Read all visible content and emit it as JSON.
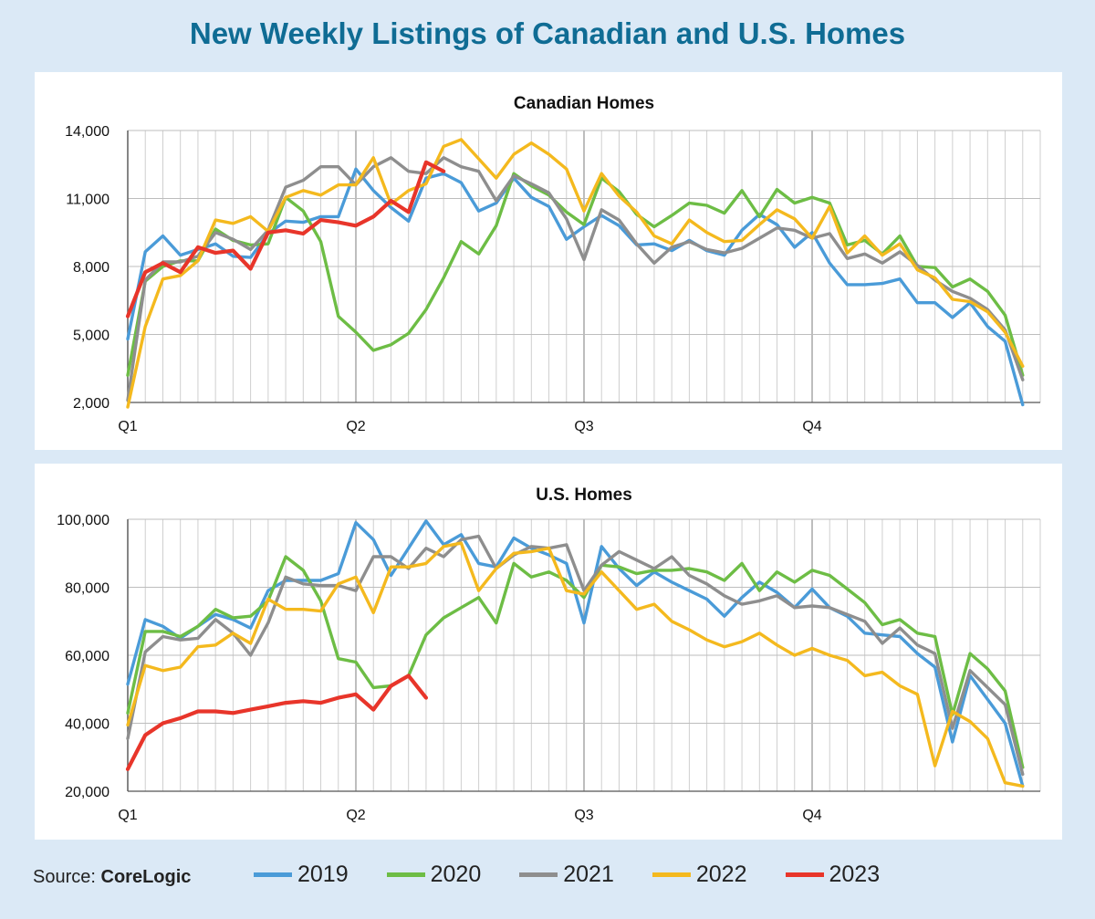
{
  "title": "New Weekly Listings of Canadian and U.S. Homes",
  "source": {
    "label": "Source:",
    "name": "CoreLogic"
  },
  "legend": [
    {
      "name": "2019",
      "color": "#4a9bd8"
    },
    {
      "name": "2020",
      "color": "#6dbd45"
    },
    {
      "name": "2021",
      "color": "#8e8e8e"
    },
    {
      "name": "2022",
      "color": "#f4b91e"
    },
    {
      "name": "2023",
      "color": "#e8352a"
    }
  ],
  "chart_data": [
    {
      "type": "line",
      "title": "Canadian Homes",
      "x_unit": "week",
      "xlim": [
        1,
        53
      ],
      "x_ticks": [
        {
          "x": 1,
          "label": "Q1"
        },
        {
          "x": 14,
          "label": "Q2"
        },
        {
          "x": 27,
          "label": "Q3"
        },
        {
          "x": 40,
          "label": "Q4"
        }
      ],
      "ylim": [
        2000,
        14000
      ],
      "y_ticks": [
        {
          "v": 2000,
          "label": "2,000"
        },
        {
          "v": 5000,
          "label": "5,000"
        },
        {
          "v": 8000,
          "label": "8,000"
        },
        {
          "v": 11000,
          "label": "11,000"
        },
        {
          "v": 14000,
          "label": "14,000"
        }
      ],
      "grid": true,
      "series": [
        {
          "name": "2019",
          "values": [
            4800,
            8650,
            9350,
            8500,
            8750,
            9000,
            8450,
            8400,
            9450,
            10000,
            9950,
            10200,
            10200,
            12300,
            11350,
            10600,
            10000,
            11900,
            12100,
            11700,
            10450,
            10800,
            11900,
            11050,
            10650,
            9200,
            9750,
            10250,
            9800,
            8950,
            9000,
            8700,
            9150,
            8700,
            8500,
            9600,
            10300,
            9850,
            8850,
            9500,
            8150,
            7200,
            7200,
            7250,
            7450,
            6400,
            6400,
            5750,
            6400,
            5350,
            4700,
            1900
          ]
        },
        {
          "name": "2020",
          "values": [
            3200,
            7350,
            8000,
            8250,
            8250,
            9650,
            9150,
            8950,
            9000,
            11050,
            10450,
            9100,
            5800,
            5100,
            4300,
            4550,
            5050,
            6100,
            7500,
            9100,
            8550,
            9800,
            12100,
            11550,
            11150,
            10400,
            9850,
            11900,
            11300,
            10300,
            9750,
            10250,
            10800,
            10700,
            10350,
            11350,
            10200,
            11400,
            10800,
            11050,
            10800,
            8950,
            9150,
            8550,
            9350,
            8000,
            7950,
            7100,
            7450,
            6900,
            5850,
            3200
          ]
        },
        {
          "name": "2021",
          "values": [
            2100,
            7400,
            8200,
            8200,
            8450,
            9500,
            9200,
            8750,
            9600,
            11500,
            11800,
            12400,
            12400,
            11600,
            12400,
            12800,
            12200,
            12100,
            12800,
            12400,
            12200,
            10900,
            12000,
            11650,
            11250,
            10100,
            8300,
            10500,
            10050,
            9000,
            8150,
            8850,
            9100,
            8750,
            8600,
            8800,
            9250,
            9700,
            9600,
            9250,
            9450,
            8350,
            8550,
            8150,
            8650,
            8050,
            7400,
            6900,
            6600,
            6100,
            5200,
            3000
          ]
        },
        {
          "name": "2022",
          "values": [
            1800,
            5350,
            7450,
            7600,
            8250,
            10050,
            9900,
            10200,
            9550,
            11050,
            11350,
            11150,
            11600,
            11600,
            12800,
            10750,
            11350,
            11650,
            13300,
            13600,
            12750,
            11900,
            12950,
            13450,
            12950,
            12300,
            10450,
            12100,
            11100,
            10400,
            9350,
            9000,
            10050,
            9500,
            9100,
            9150,
            9850,
            10500,
            10100,
            9250,
            10650,
            8600,
            9350,
            8500,
            9000,
            7850,
            7500,
            6550,
            6450,
            6000,
            5100,
            3600
          ]
        },
        {
          "name": "2023",
          "values": [
            5800,
            7750,
            8150,
            7750,
            8850,
            8600,
            8700,
            7900,
            9500,
            9600,
            9450,
            10050,
            9950,
            9800,
            10200,
            10900,
            10400,
            12600,
            12200
          ]
        }
      ]
    },
    {
      "type": "line",
      "title": "U.S. Homes",
      "x_unit": "week",
      "xlim": [
        1,
        53
      ],
      "x_ticks": [
        {
          "x": 1,
          "label": "Q1"
        },
        {
          "x": 14,
          "label": "Q2"
        },
        {
          "x": 27,
          "label": "Q3"
        },
        {
          "x": 40,
          "label": "Q4"
        }
      ],
      "ylim": [
        20000,
        100000
      ],
      "y_ticks": [
        {
          "v": 20000,
          "label": "20,000"
        },
        {
          "v": 40000,
          "label": "40,000"
        },
        {
          "v": 60000,
          "label": "60,000"
        },
        {
          "v": 80000,
          "label": "80,000"
        },
        {
          "v": 100000,
          "label": "100,000"
        }
      ],
      "grid": true,
      "series": [
        {
          "name": "2019",
          "values": [
            51500,
            70500,
            68500,
            65000,
            68500,
            72000,
            70500,
            68000,
            79000,
            82000,
            82000,
            82000,
            84000,
            99000,
            94000,
            83500,
            91500,
            99500,
            92500,
            95500,
            87000,
            86000,
            94500,
            91500,
            89500,
            87000,
            69500,
            92000,
            85500,
            80500,
            84500,
            81500,
            79000,
            76500,
            71500,
            77000,
            81500,
            78500,
            74000,
            79500,
            74000,
            71500,
            66500,
            66000,
            65500,
            60500,
            56500,
            34500,
            54000,
            47000,
            40000,
            21500
          ]
        },
        {
          "name": "2020",
          "values": [
            43000,
            67000,
            67000,
            65500,
            68500,
            73500,
            71000,
            71500,
            76000,
            89000,
            85000,
            76000,
            59000,
            58000,
            50500,
            51000,
            54000,
            66000,
            71000,
            74000,
            77000,
            69500,
            87000,
            83000,
            84500,
            82000,
            77000,
            86500,
            86000,
            84000,
            85000,
            85000,
            85500,
            84500,
            82000,
            87000,
            79000,
            84500,
            81500,
            85000,
            83500,
            79500,
            75500,
            69000,
            70500,
            66500,
            65500,
            42500,
            60500,
            56000,
            49500,
            27000
          ]
        },
        {
          "name": "2021",
          "values": [
            35500,
            61000,
            65500,
            64500,
            65000,
            70500,
            66500,
            60000,
            69500,
            83000,
            81000,
            80500,
            80500,
            79000,
            89000,
            89000,
            85500,
            91500,
            89000,
            94000,
            95000,
            85500,
            89500,
            92000,
            91500,
            92500,
            79000,
            86500,
            90500,
            88000,
            85500,
            89000,
            83500,
            81000,
            77500,
            75000,
            76000,
            77500,
            74000,
            74500,
            74000,
            72000,
            70000,
            63500,
            68000,
            63000,
            60500,
            38500,
            55500,
            50500,
            45500,
            25000
          ]
        },
        {
          "name": "2022",
          "values": [
            39500,
            57000,
            55500,
            56500,
            62500,
            63000,
            66500,
            63500,
            76500,
            73500,
            73500,
            73000,
            81000,
            83000,
            72500,
            86000,
            86000,
            87000,
            92000,
            93000,
            79000,
            85500,
            90000,
            90500,
            91500,
            79000,
            78000,
            84500,
            79000,
            73500,
            75000,
            70000,
            67500,
            64500,
            62500,
            64000,
            66500,
            63000,
            60000,
            62000,
            60000,
            58500,
            54000,
            55000,
            51000,
            48500,
            27500,
            43500,
            40500,
            35500,
            22500,
            21500
          ]
        },
        {
          "name": "2023",
          "values": [
            26500,
            36500,
            40000,
            41500,
            43500,
            43500,
            43000,
            44000,
            45000,
            46000,
            46500,
            46000,
            47500,
            48500,
            44000,
            51000,
            54000,
            47500
          ]
        }
      ]
    }
  ]
}
